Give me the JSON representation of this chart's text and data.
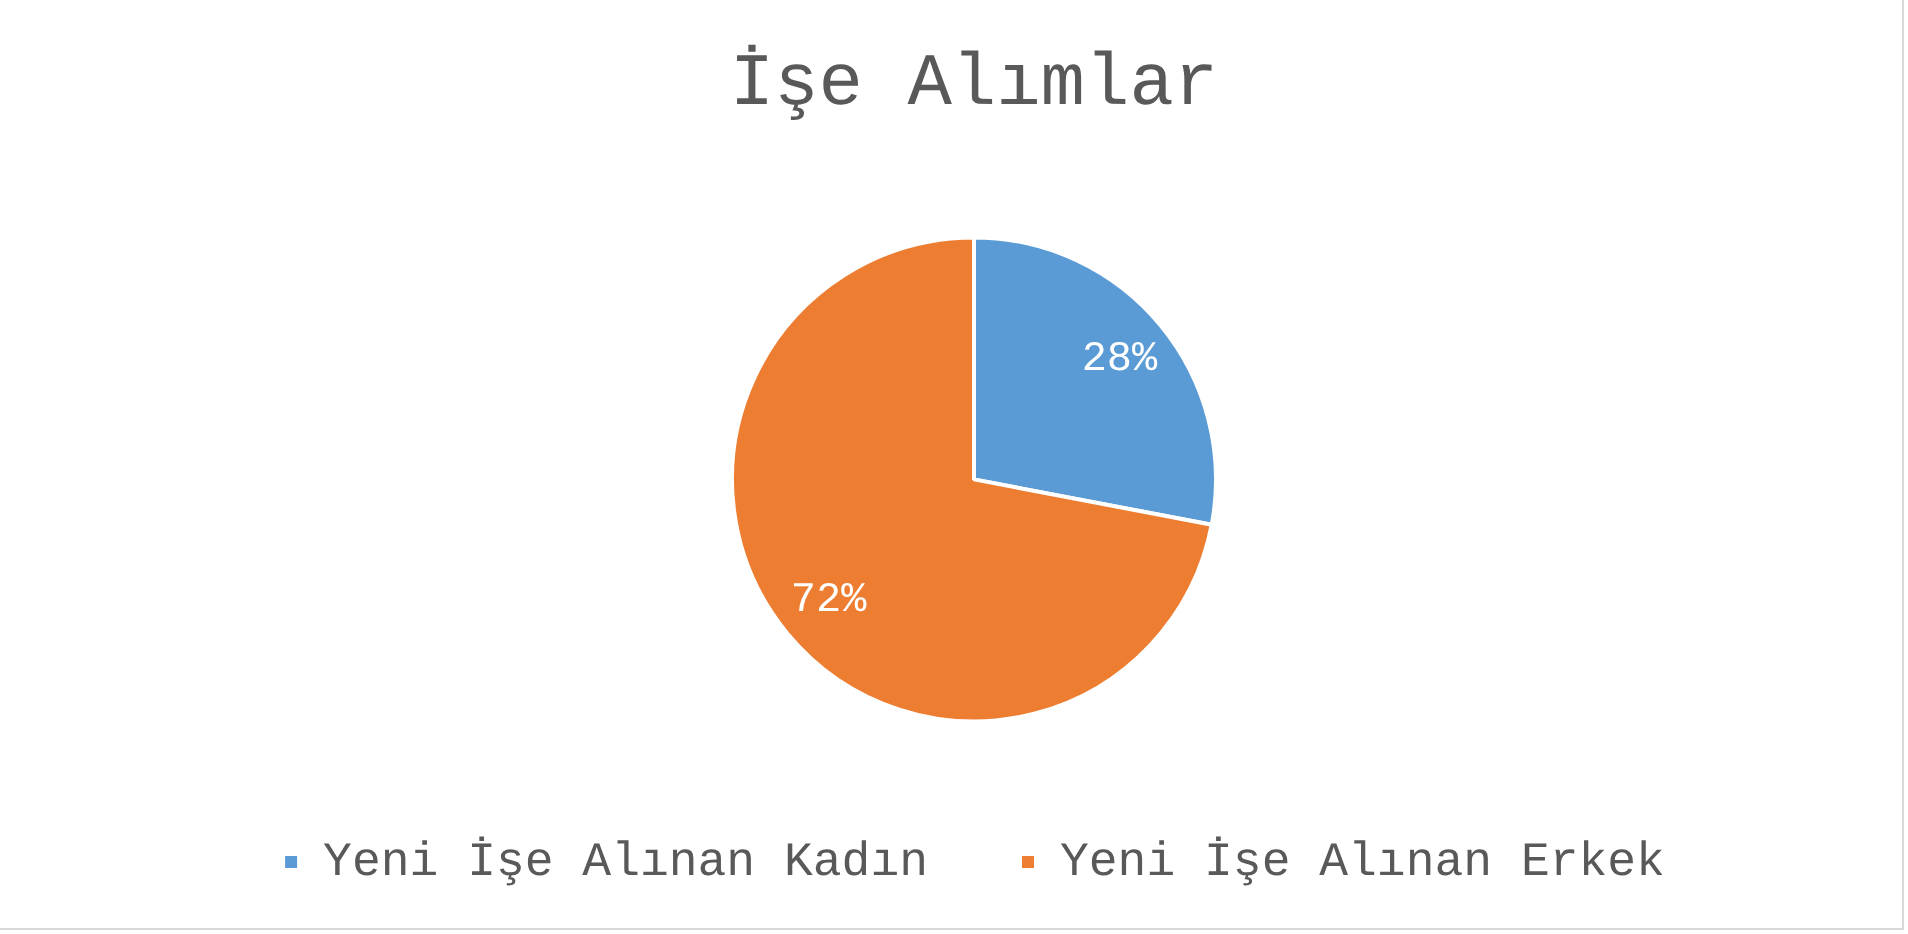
{
  "chart_data": {
    "type": "pie",
    "title": "İşe Alımlar",
    "categories": [
      "Yeni İşe Alınan Kadın",
      "Yeni İşe Alınan Erkek"
    ],
    "values": [
      28,
      72
    ],
    "colors": [
      "#5b9bd5",
      "#ed7d31"
    ],
    "value_labels": [
      "28%",
      "72%"
    ],
    "legend": "bottom"
  }
}
